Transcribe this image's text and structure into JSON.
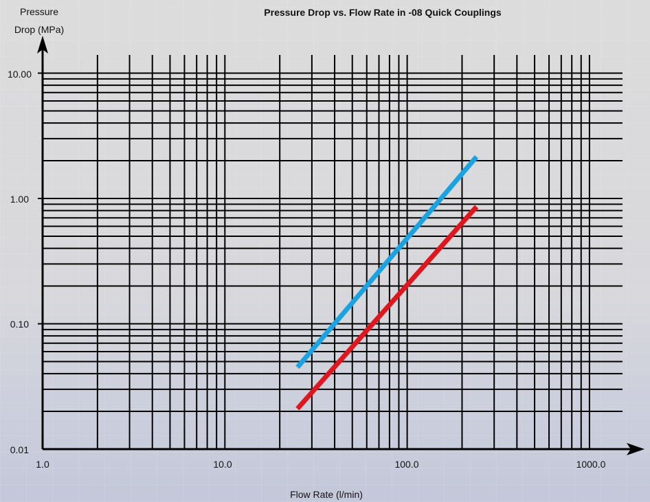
{
  "chart_data": {
    "type": "line",
    "title": "Pressure Drop vs. Flow Rate in -08 Quick Couplings",
    "xlabel": "Flow Rate (l/min)",
    "ylabel_line1": "Pressure",
    "ylabel_line2": "Drop (MPa)",
    "xscale": "log",
    "yscale": "log",
    "xlim": [
      1,
      1500
    ],
    "ylim": [
      0.01,
      12
    ],
    "grid": true,
    "legend": "none",
    "x_ticks": [
      "1.0",
      "10.0",
      "100.0",
      "1000.0"
    ],
    "y_ticks": [
      "0.01",
      "0.10",
      "1.00",
      "10.00"
    ],
    "series": [
      {
        "color": "#1aa3e0",
        "x": [
          25,
          240
        ],
        "y": [
          0.045,
          2.15
        ]
      },
      {
        "color": "#e0161e",
        "x": [
          25,
          240
        ],
        "y": [
          0.021,
          0.86
        ]
      }
    ]
  }
}
